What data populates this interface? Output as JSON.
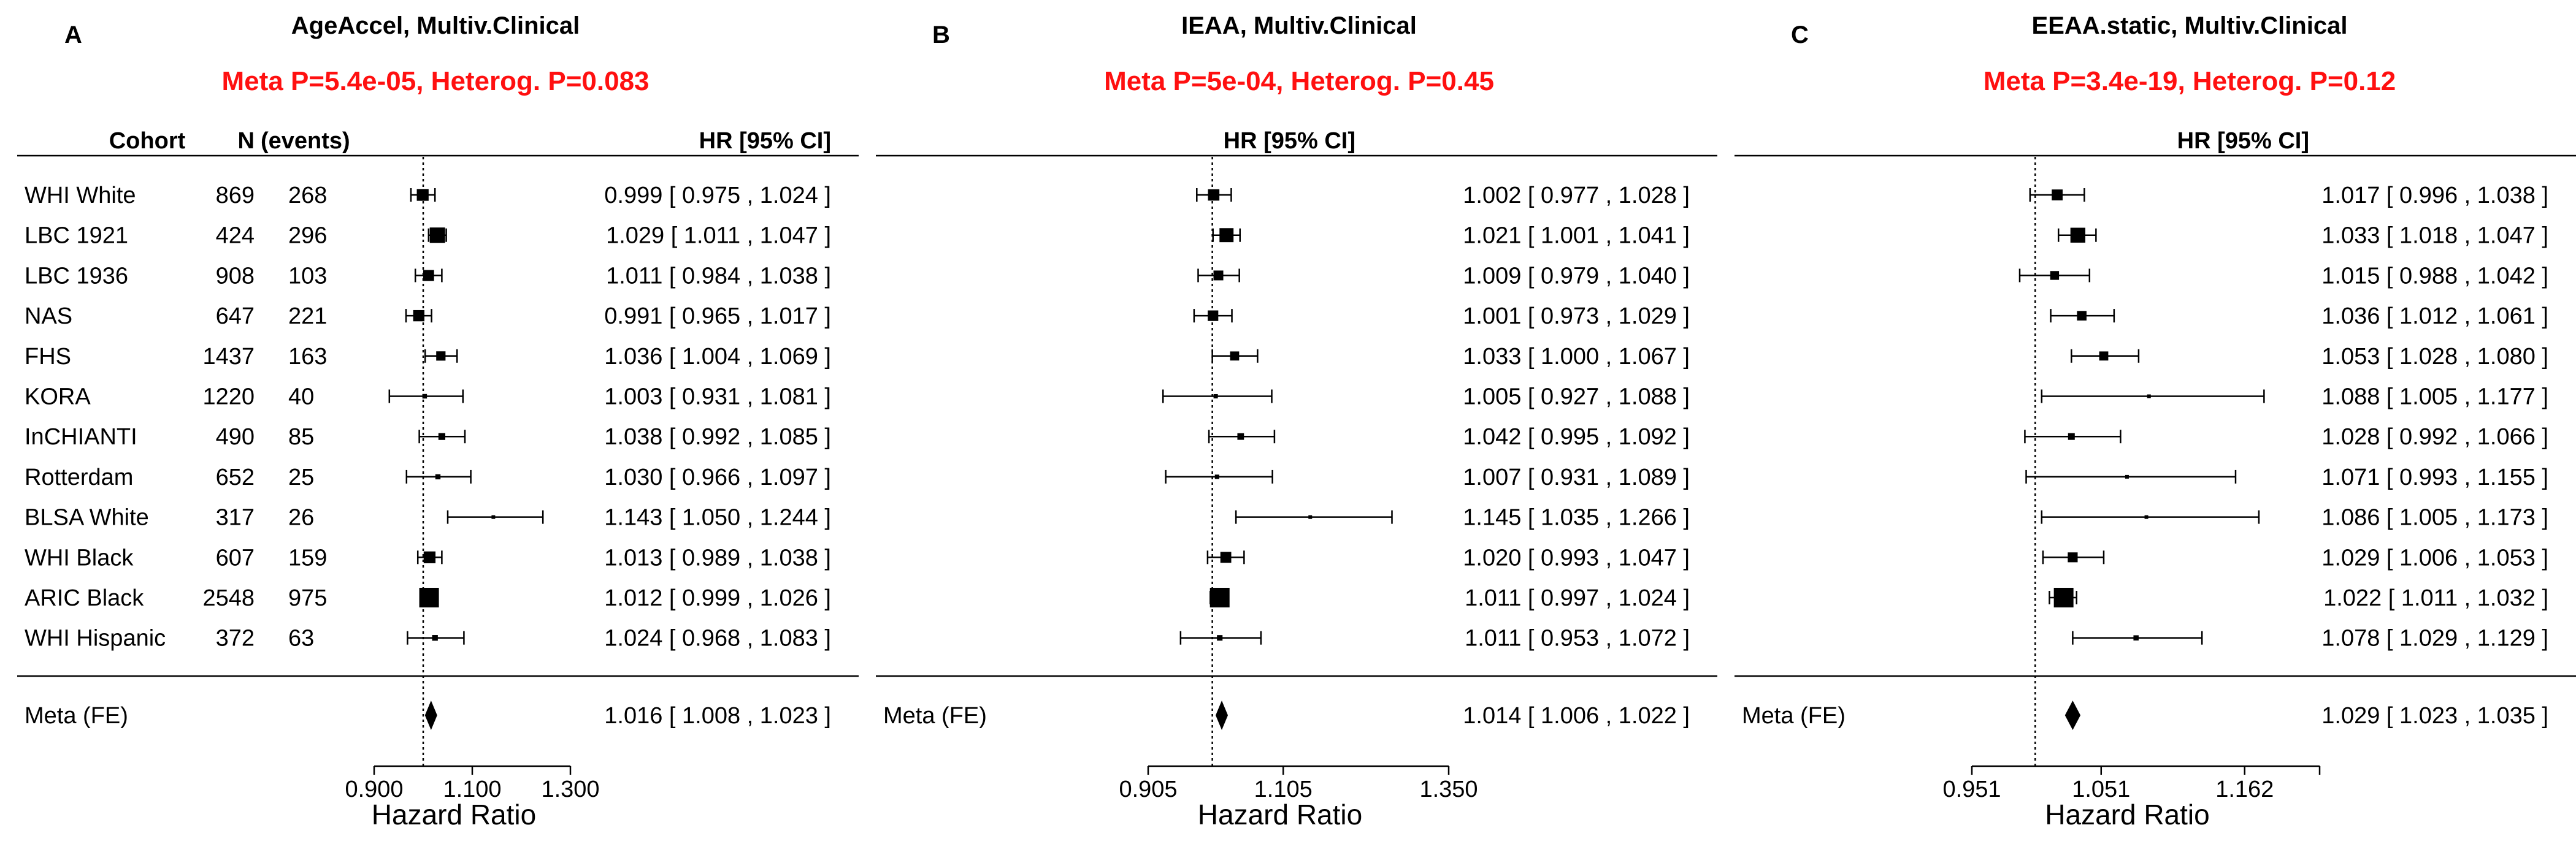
{
  "chart_data": [
    {
      "type": "forest",
      "panel_label": "A",
      "title": "AgeAccel, Multiv.Clinical",
      "meta_stats": "Meta P=5.4e-05, Heterog. P=0.083",
      "column_headers": {
        "cohort": "Cohort",
        "n": "N",
        "events": "(events)",
        "hr": "HR [95% CI]"
      },
      "xlabel": "Hazard Ratio",
      "x_ticks": [
        "0.900",
        "1.100",
        "1.300"
      ],
      "xlim": [
        0.9,
        1.3
      ],
      "reference_line": 1.0,
      "rows": [
        {
          "cohort": "WHI White",
          "n": "869",
          "events": "268",
          "hr": 0.999,
          "lo": 0.975,
          "hi": 1.024,
          "text": "0.999 [ 0.975 , 1.024 ]"
        },
        {
          "cohort": "LBC 1921",
          "n": "424",
          "events": "296",
          "hr": 1.029,
          "lo": 1.011,
          "hi": 1.047,
          "text": "1.029 [ 1.011 , 1.047 ]"
        },
        {
          "cohort": "LBC 1936",
          "n": "908",
          "events": "103",
          "hr": 1.011,
          "lo": 0.984,
          "hi": 1.038,
          "text": "1.011 [ 0.984 , 1.038 ]"
        },
        {
          "cohort": "NAS",
          "n": "647",
          "events": "221",
          "hr": 0.991,
          "lo": 0.965,
          "hi": 1.017,
          "text": "0.991 [ 0.965 , 1.017 ]"
        },
        {
          "cohort": "FHS",
          "n": "1437",
          "events": "163",
          "hr": 1.036,
          "lo": 1.004,
          "hi": 1.069,
          "text": "1.036 [ 1.004 , 1.069 ]"
        },
        {
          "cohort": "KORA",
          "n": "1220",
          "events": "40",
          "hr": 1.003,
          "lo": 0.931,
          "hi": 1.081,
          "text": "1.003 [ 0.931 , 1.081 ]"
        },
        {
          "cohort": "InCHIANTI",
          "n": "490",
          "events": "85",
          "hr": 1.038,
          "lo": 0.992,
          "hi": 1.085,
          "text": "1.038 [ 0.992 , 1.085 ]"
        },
        {
          "cohort": "Rotterdam",
          "n": "652",
          "events": "25",
          "hr": 1.03,
          "lo": 0.966,
          "hi": 1.097,
          "text": "1.030 [ 0.966 , 1.097 ]"
        },
        {
          "cohort": "BLSA White",
          "n": "317",
          "events": "26",
          "hr": 1.143,
          "lo": 1.05,
          "hi": 1.244,
          "text": "1.143 [ 1.050 , 1.244 ]"
        },
        {
          "cohort": "WHI Black",
          "n": "607",
          "events": "159",
          "hr": 1.013,
          "lo": 0.989,
          "hi": 1.038,
          "text": "1.013 [ 0.989 , 1.038 ]"
        },
        {
          "cohort": "ARIC Black",
          "n": "2548",
          "events": "975",
          "hr": 1.012,
          "lo": 0.999,
          "hi": 1.026,
          "text": "1.012 [ 0.999 , 1.026 ]"
        },
        {
          "cohort": "WHI Hispanic",
          "n": "372",
          "events": "63",
          "hr": 1.024,
          "lo": 0.968,
          "hi": 1.083,
          "text": "1.024 [ 0.968 , 1.083 ]"
        }
      ],
      "meta": {
        "label": "Meta (FE)",
        "hr": 1.016,
        "lo": 1.008,
        "hi": 1.023,
        "text": "1.016 [ 1.008 , 1.023 ]"
      }
    },
    {
      "type": "forest",
      "panel_label": "B",
      "title": "IEAA, Multiv.Clinical",
      "meta_stats": "Meta P=5e-04, Heterog. P=0.45",
      "column_headers": {
        "hr": "HR [95% CI]"
      },
      "xlabel": "Hazard Ratio",
      "x_ticks": [
        "0.905",
        "1.105",
        "1.350"
      ],
      "xlim": [
        0.905,
        1.35
      ],
      "reference_line": 1.0,
      "rows": [
        {
          "hr": 1.002,
          "lo": 0.977,
          "hi": 1.028,
          "text": "1.002 [ 0.977 , 1.028 ]"
        },
        {
          "hr": 1.021,
          "lo": 1.001,
          "hi": 1.041,
          "text": "1.021 [ 1.001 , 1.041 ]"
        },
        {
          "hr": 1.009,
          "lo": 0.979,
          "hi": 1.04,
          "text": "1.009 [ 0.979 , 1.040 ]"
        },
        {
          "hr": 1.001,
          "lo": 0.973,
          "hi": 1.029,
          "text": "1.001 [ 0.973 , 1.029 ]"
        },
        {
          "hr": 1.033,
          "lo": 1.0,
          "hi": 1.067,
          "text": "1.033 [ 1.000 , 1.067 ]"
        },
        {
          "hr": 1.005,
          "lo": 0.927,
          "hi": 1.088,
          "text": "1.005 [ 0.927 , 1.088 ]"
        },
        {
          "hr": 1.042,
          "lo": 0.995,
          "hi": 1.092,
          "text": "1.042 [ 0.995 , 1.092 ]"
        },
        {
          "hr": 1.007,
          "lo": 0.931,
          "hi": 1.089,
          "text": "1.007 [ 0.931 , 1.089 ]"
        },
        {
          "hr": 1.145,
          "lo": 1.035,
          "hi": 1.266,
          "text": "1.145 [ 1.035 , 1.266 ]"
        },
        {
          "hr": 1.02,
          "lo": 0.993,
          "hi": 1.047,
          "text": "1.020 [ 0.993 , 1.047 ]"
        },
        {
          "hr": 1.011,
          "lo": 0.997,
          "hi": 1.024,
          "text": "1.011 [ 0.997 , 1.024 ]"
        },
        {
          "hr": 1.011,
          "lo": 0.953,
          "hi": 1.072,
          "text": "1.011 [ 0.953 , 1.072 ]"
        }
      ],
      "meta": {
        "label": "Meta (FE)",
        "hr": 1.014,
        "lo": 1.006,
        "hi": 1.022,
        "text": "1.014 [ 1.006 , 1.022 ]"
      }
    },
    {
      "type": "forest",
      "panel_label": "C",
      "title": "EEAA.static, Multiv.Clinical",
      "meta_stats": "Meta P=3.4e-19, Heterog. P=0.12",
      "column_headers": {
        "hr": "HR [95% CI]"
      },
      "xlabel": "Hazard Ratio",
      "x_ticks": [
        "0.951",
        "1.051",
        "1.162"
      ],
      "xlim": [
        0.951,
        1.22
      ],
      "reference_line": 1.0,
      "rows": [
        {
          "hr": 1.017,
          "lo": 0.996,
          "hi": 1.038,
          "text": "1.017 [ 0.996 , 1.038 ]"
        },
        {
          "hr": 1.033,
          "lo": 1.018,
          "hi": 1.047,
          "text": "1.033 [ 1.018 , 1.047 ]"
        },
        {
          "hr": 1.015,
          "lo": 0.988,
          "hi": 1.042,
          "text": "1.015 [ 0.988 , 1.042 ]"
        },
        {
          "hr": 1.036,
          "lo": 1.012,
          "hi": 1.061,
          "text": "1.036 [ 1.012 , 1.061 ]"
        },
        {
          "hr": 1.053,
          "lo": 1.028,
          "hi": 1.08,
          "text": "1.053 [ 1.028 , 1.080 ]"
        },
        {
          "hr": 1.088,
          "lo": 1.005,
          "hi": 1.177,
          "text": "1.088 [ 1.005 , 1.177 ]"
        },
        {
          "hr": 1.028,
          "lo": 0.992,
          "hi": 1.066,
          "text": "1.028 [ 0.992 , 1.066 ]"
        },
        {
          "hr": 1.071,
          "lo": 0.993,
          "hi": 1.155,
          "text": "1.071 [ 0.993 , 1.155 ]"
        },
        {
          "hr": 1.086,
          "lo": 1.005,
          "hi": 1.173,
          "text": "1.086 [ 1.005 , 1.173 ]"
        },
        {
          "hr": 1.029,
          "lo": 1.006,
          "hi": 1.053,
          "text": "1.029 [ 1.006 , 1.053 ]"
        },
        {
          "hr": 1.022,
          "lo": 1.011,
          "hi": 1.032,
          "text": "1.022 [ 1.011 , 1.032 ]"
        },
        {
          "hr": 1.078,
          "lo": 1.029,
          "hi": 1.129,
          "text": "1.078 [ 1.029 , 1.129 ]"
        }
      ],
      "meta": {
        "label": "Meta (FE)",
        "hr": 1.029,
        "lo": 1.023,
        "hi": 1.035,
        "text": "1.029 [ 1.023 , 1.035 ]"
      }
    }
  ]
}
